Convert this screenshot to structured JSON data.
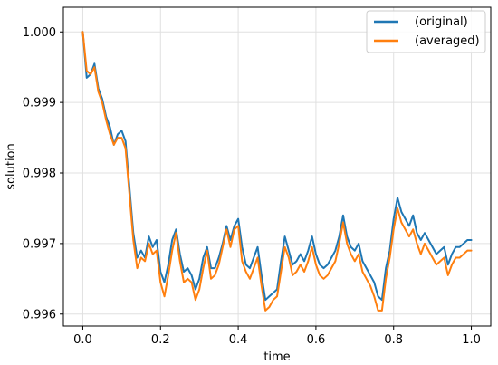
{
  "chart_data": {
    "type": "line",
    "title": "",
    "xlabel": "time",
    "ylabel": "solution",
    "xlim": [
      -0.05,
      1.05
    ],
    "ylim": [
      0.99583,
      1.00035
    ],
    "grid": true,
    "legend_position": "top-right",
    "x_ticks": [
      0.0,
      0.2,
      0.4,
      0.6,
      0.8,
      1.0
    ],
    "x_tick_labels": [
      "0.0",
      "0.2",
      "0.4",
      "0.6",
      "0.8",
      "1.0"
    ],
    "y_ticks": [
      0.996,
      0.997,
      0.998,
      0.999,
      1.0
    ],
    "y_tick_labels": [
      "0.996",
      "0.997",
      "0.998",
      "0.999",
      "1.000"
    ],
    "x": [
      0.0,
      0.01,
      0.02,
      0.03,
      0.04,
      0.05,
      0.06,
      0.07,
      0.08,
      0.09,
      0.1,
      0.11,
      0.12,
      0.13,
      0.14,
      0.15,
      0.16,
      0.17,
      0.18,
      0.19,
      0.2,
      0.21,
      0.22,
      0.23,
      0.24,
      0.25,
      0.26,
      0.27,
      0.28,
      0.29,
      0.3,
      0.31,
      0.32,
      0.33,
      0.34,
      0.35,
      0.36,
      0.37,
      0.38,
      0.39,
      0.4,
      0.41,
      0.42,
      0.43,
      0.44,
      0.45,
      0.46,
      0.47,
      0.48,
      0.49,
      0.5,
      0.51,
      0.52,
      0.53,
      0.54,
      0.55,
      0.56,
      0.57,
      0.58,
      0.59,
      0.6,
      0.61,
      0.62,
      0.63,
      0.64,
      0.65,
      0.66,
      0.67,
      0.68,
      0.69,
      0.7,
      0.71,
      0.72,
      0.73,
      0.74,
      0.75,
      0.76,
      0.77,
      0.78,
      0.79,
      0.8,
      0.81,
      0.82,
      0.83,
      0.84,
      0.85,
      0.86,
      0.87,
      0.88,
      0.89,
      0.9,
      0.91,
      0.92,
      0.93,
      0.94,
      0.95,
      0.96,
      0.97,
      0.98,
      0.99,
      1.0
    ],
    "series": [
      {
        "name": "(original)",
        "color": "#1f77b4",
        "values": [
          1.0,
          0.99935,
          0.9994,
          0.99955,
          0.9992,
          0.99905,
          0.9988,
          0.99865,
          0.9984,
          0.99855,
          0.9986,
          0.99845,
          0.9978,
          0.99715,
          0.9968,
          0.9969,
          0.9968,
          0.9971,
          0.99695,
          0.99705,
          0.9966,
          0.99645,
          0.9967,
          0.99705,
          0.9972,
          0.99685,
          0.9966,
          0.99665,
          0.99655,
          0.99635,
          0.9965,
          0.9968,
          0.99695,
          0.99665,
          0.99665,
          0.9968,
          0.997,
          0.99725,
          0.99705,
          0.99725,
          0.99735,
          0.99695,
          0.9967,
          0.99665,
          0.9968,
          0.99695,
          0.99655,
          0.9962,
          0.99625,
          0.9963,
          0.99635,
          0.99675,
          0.9971,
          0.9969,
          0.9967,
          0.99675,
          0.99685,
          0.99675,
          0.9969,
          0.9971,
          0.99685,
          0.9967,
          0.99665,
          0.9967,
          0.9968,
          0.9969,
          0.9971,
          0.9974,
          0.9971,
          0.99695,
          0.9969,
          0.997,
          0.99675,
          0.99665,
          0.99655,
          0.99645,
          0.99625,
          0.9962,
          0.99665,
          0.9969,
          0.99735,
          0.99765,
          0.99745,
          0.99735,
          0.99725,
          0.9974,
          0.99715,
          0.99705,
          0.99715,
          0.99705,
          0.99695,
          0.99685,
          0.9969,
          0.99695,
          0.9967,
          0.99685,
          0.99695,
          0.99695,
          0.997,
          0.99705,
          0.99705
        ]
      },
      {
        "name": "(averaged)",
        "color": "#ff7f0e",
        "values": [
          1.0,
          0.99945,
          0.9994,
          0.9995,
          0.99915,
          0.999,
          0.99875,
          0.99855,
          0.9984,
          0.9985,
          0.9985,
          0.99835,
          0.9977,
          0.99705,
          0.99665,
          0.9968,
          0.99675,
          0.997,
          0.99685,
          0.9969,
          0.99645,
          0.99625,
          0.99655,
          0.9969,
          0.99715,
          0.99675,
          0.99645,
          0.9965,
          0.99645,
          0.9962,
          0.99635,
          0.99665,
          0.9969,
          0.9965,
          0.99655,
          0.9967,
          0.99695,
          0.9972,
          0.99695,
          0.9972,
          0.99725,
          0.99675,
          0.9966,
          0.9965,
          0.99665,
          0.9968,
          0.9964,
          0.99605,
          0.9961,
          0.9962,
          0.99625,
          0.9966,
          0.99695,
          0.9968,
          0.99655,
          0.9966,
          0.9967,
          0.9966,
          0.99675,
          0.99695,
          0.9967,
          0.99655,
          0.9965,
          0.99655,
          0.99665,
          0.99675,
          0.997,
          0.9973,
          0.997,
          0.99685,
          0.99675,
          0.99685,
          0.9966,
          0.9965,
          0.9964,
          0.99625,
          0.99605,
          0.99605,
          0.9965,
          0.9968,
          0.9972,
          0.9975,
          0.9973,
          0.9972,
          0.9971,
          0.9972,
          0.997,
          0.99685,
          0.997,
          0.9969,
          0.9968,
          0.9967,
          0.99675,
          0.9968,
          0.99655,
          0.9967,
          0.9968,
          0.9968,
          0.99685,
          0.9969,
          0.9969
        ]
      }
    ]
  }
}
